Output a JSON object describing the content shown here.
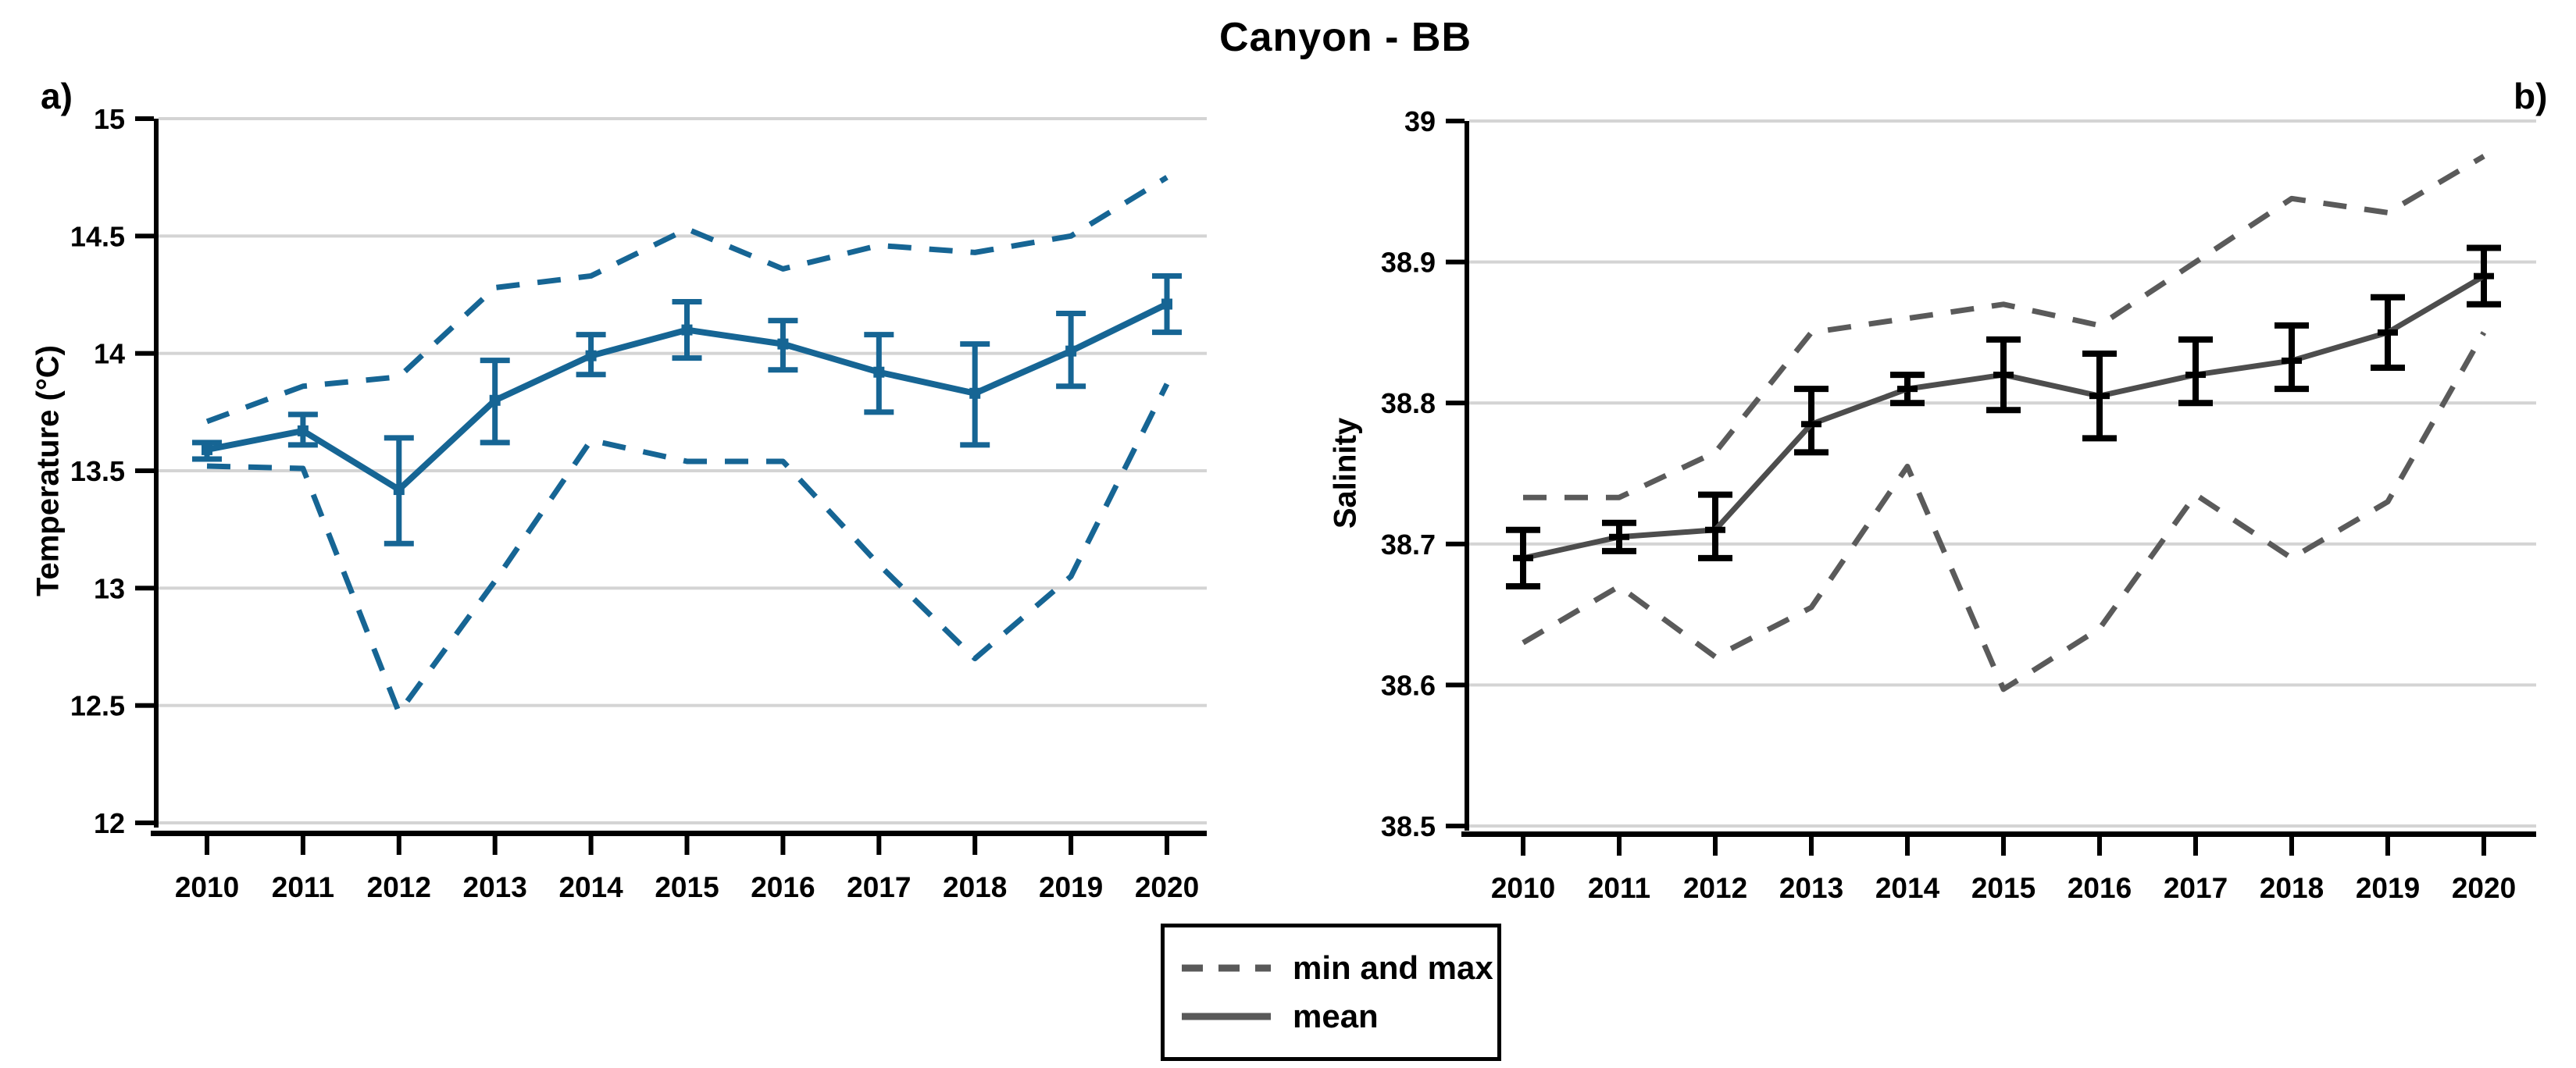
{
  "title": "Canyon - BB",
  "panel_labels": {
    "a": "a)",
    "b": "b)"
  },
  "legend": {
    "items": [
      {
        "label": "min and max",
        "style": "dashed"
      },
      {
        "label": "mean",
        "style": "solid"
      }
    ]
  },
  "colors": {
    "panel_a_series": "#166594",
    "panel_b_mean": "#4d4d4d",
    "panel_b_minmax": "#5a5a5a",
    "panel_b_error": "#000000",
    "gridline": "#d4d4d4",
    "axis": "#000000",
    "legend_line": "#595959"
  },
  "chart_data": [
    {
      "type": "line",
      "panel": "a",
      "ylabel": "Temperature (°C)",
      "xlabel": "",
      "x": [
        2010,
        2011,
        2012,
        2013,
        2014,
        2015,
        2016,
        2017,
        2018,
        2019,
        2020
      ],
      "ylim": [
        12,
        15
      ],
      "yticks": [
        12,
        12.5,
        13,
        13.5,
        14,
        14.5,
        15
      ],
      "ytick_labels": [
        "12",
        "12.5",
        "13",
        "13.5",
        "14",
        "14.5",
        "15"
      ],
      "grid": true,
      "legend_position": "shared-bottom",
      "series": [
        {
          "name": "mean",
          "values": [
            13.59,
            13.67,
            13.42,
            13.8,
            13.99,
            14.1,
            14.04,
            13.92,
            13.83,
            14.01,
            14.21
          ]
        },
        {
          "name": "error_low",
          "values": [
            13.55,
            13.61,
            13.19,
            13.62,
            13.91,
            13.98,
            13.93,
            13.75,
            13.61,
            13.86,
            14.09
          ]
        },
        {
          "name": "error_high",
          "values": [
            13.62,
            13.74,
            13.64,
            13.97,
            14.08,
            14.22,
            14.14,
            14.08,
            14.04,
            14.17,
            14.33
          ]
        },
        {
          "name": "min",
          "values": [
            13.52,
            13.51,
            12.47,
            13.03,
            13.63,
            13.54,
            13.54,
            13.1,
            12.7,
            13.05,
            13.87
          ]
        },
        {
          "name": "max",
          "values": [
            13.71,
            13.86,
            13.9,
            14.28,
            14.33,
            14.53,
            14.36,
            14.46,
            14.43,
            14.5,
            14.75
          ]
        }
      ]
    },
    {
      "type": "line",
      "panel": "b",
      "ylabel": "Salinity",
      "xlabel": "",
      "x": [
        2010,
        2011,
        2012,
        2013,
        2014,
        2015,
        2016,
        2017,
        2018,
        2019,
        2020
      ],
      "ylim": [
        38.5,
        39
      ],
      "yticks": [
        38.5,
        38.6,
        38.7,
        38.8,
        38.9,
        39
      ],
      "ytick_labels": [
        "38.5",
        "38.6",
        "38.7",
        "38.8",
        "38.9",
        "39"
      ],
      "grid": true,
      "legend_position": "shared-bottom",
      "series": [
        {
          "name": "mean",
          "values": [
            38.69,
            38.705,
            38.71,
            38.785,
            38.81,
            38.82,
            38.805,
            38.82,
            38.83,
            38.85,
            38.89
          ]
        },
        {
          "name": "error_low",
          "values": [
            38.67,
            38.695,
            38.69,
            38.765,
            38.8,
            38.795,
            38.775,
            38.8,
            38.81,
            38.825,
            38.87
          ]
        },
        {
          "name": "error_high",
          "values": [
            38.71,
            38.715,
            38.735,
            38.81,
            38.82,
            38.845,
            38.835,
            38.845,
            38.855,
            38.875,
            38.91
          ]
        },
        {
          "name": "min",
          "values": [
            38.63,
            38.67,
            38.62,
            38.655,
            38.755,
            38.597,
            38.64,
            38.735,
            38.69,
            38.73,
            38.85
          ]
        },
        {
          "name": "max",
          "values": [
            38.733,
            38.733,
            38.765,
            38.85,
            38.86,
            38.87,
            38.855,
            38.9,
            38.945,
            38.935,
            38.975
          ]
        }
      ]
    }
  ]
}
